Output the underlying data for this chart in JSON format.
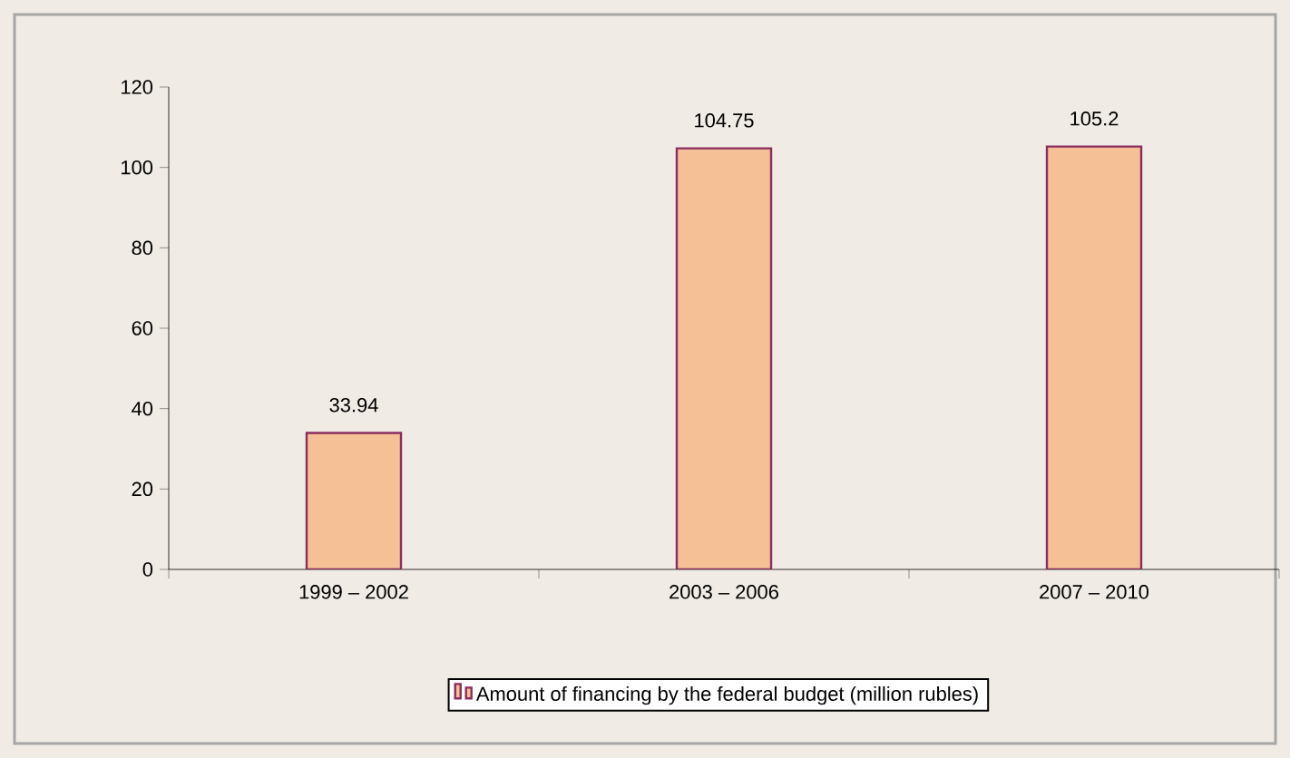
{
  "chart_data": {
    "type": "bar",
    "categories": [
      "1999 – 2002",
      "2003 – 2006",
      "2007 – 2010"
    ],
    "series": [
      {
        "name": "Amount of financing by the federal budget (million rubles)",
        "color": "#f5c095",
        "values": [
          33.94,
          104.75,
          105.2
        ]
      }
    ],
    "ylim": [
      0,
      120
    ],
    "yticks": [
      0,
      20,
      40,
      60,
      80,
      100,
      120
    ],
    "data_labels": true,
    "grid": false,
    "legend": "bottom"
  }
}
